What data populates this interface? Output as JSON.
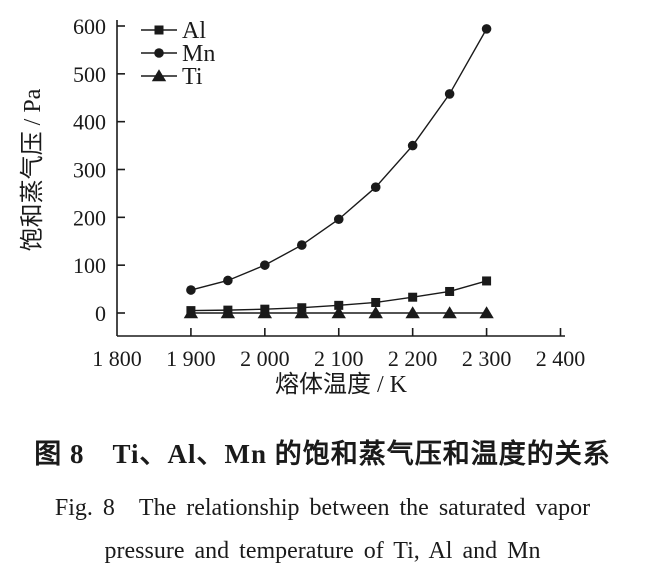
{
  "colors": {
    "ink": "#1a1a1a",
    "background": "#ffffff"
  },
  "figure": {
    "caption_cn": "图 8　Ti、Al、Mn 的饱和蒸气压和温度的关系",
    "caption_en_line1": "Fig. 8　The relationship between the saturated vapor",
    "caption_en_line2": "pressure and temperature of Ti, Al and Mn"
  },
  "chart_data": {
    "type": "line",
    "title": "",
    "xlabel": "熔体温度 / K",
    "ylabel": "饱和蒸气压 / Pa",
    "xlim": [
      1800,
      2400
    ],
    "ylim": [
      0,
      600
    ],
    "x_ticks": [
      1800,
      1900,
      2000,
      2100,
      2200,
      2300,
      2400
    ],
    "x_tick_labels": [
      "1 800",
      "1 900",
      "2 000",
      "2 100",
      "2 200",
      "2 300",
      "2 400"
    ],
    "y_ticks": [
      0,
      100,
      200,
      300,
      400,
      500,
      600
    ],
    "grid": false,
    "legend_position": "top-left-inside",
    "x": [
      1900,
      1950,
      2000,
      2050,
      2100,
      2150,
      2200,
      2250,
      2300
    ],
    "series": [
      {
        "name": "Al",
        "marker": "square",
        "values": [
          5,
          6,
          8,
          11,
          16,
          22,
          33,
          45,
          67
        ]
      },
      {
        "name": "Mn",
        "marker": "circle",
        "values": [
          48,
          68,
          100,
          142,
          196,
          263,
          350,
          458,
          594
        ]
      },
      {
        "name": "Ti",
        "marker": "triangle",
        "values": [
          0,
          0,
          0,
          0,
          0,
          0,
          0,
          0,
          0
        ]
      }
    ]
  }
}
